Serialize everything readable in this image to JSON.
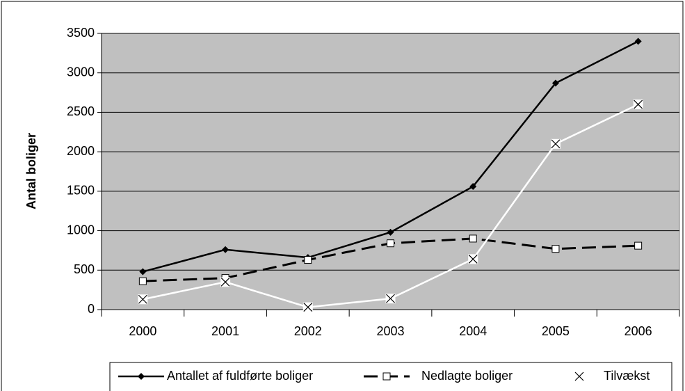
{
  "chart_data": {
    "type": "line",
    "y_label": "Antal boliger",
    "categories": [
      "2000",
      "2001",
      "2002",
      "2003",
      "2004",
      "2005",
      "2006"
    ],
    "series": [
      {
        "name": "Antallet af fuldførte boliger",
        "color": "#000000",
        "dash": false,
        "marker": "diamond",
        "values": [
          480,
          760,
          660,
          980,
          1560,
          2870,
          3400
        ]
      },
      {
        "name": "Nedlagte boliger",
        "color": "#000000",
        "dash": true,
        "marker": "square",
        "values": [
          360,
          400,
          630,
          840,
          900,
          770,
          810
        ]
      },
      {
        "name": "Tilvækst",
        "color": "#ffffff",
        "dash": false,
        "marker": "x",
        "values": [
          130,
          350,
          30,
          140,
          640,
          2100,
          2600
        ]
      }
    ],
    "ylim": [
      0,
      3500
    ],
    "yticks": [
      0,
      500,
      1000,
      1500,
      2000,
      2500,
      3000,
      3500
    ],
    "grid": true,
    "plot_background": "#c0c0c0",
    "legend": "bottom"
  }
}
